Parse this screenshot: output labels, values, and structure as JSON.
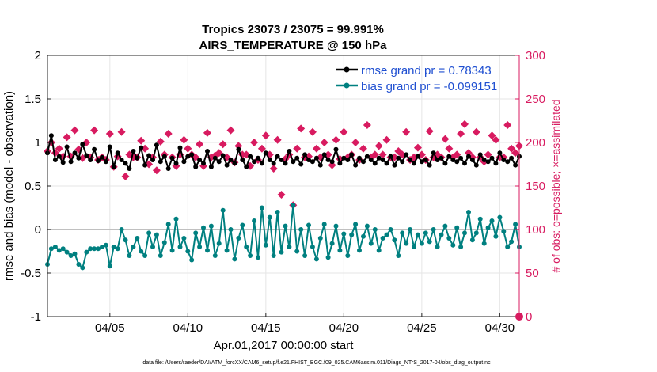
{
  "chart_data": {
    "type": "line",
    "title": "Tropics 23073 / 23075 = 99.991%",
    "subtitle": "AIRS_TEMPERATURE @ 150 hPa",
    "xlabel": "Apr.01,2017 00:00:00 start",
    "ylabel_left": "rmse and bias (model - observation)",
    "ylabel_right": "# of obs: o=possible; ×=assimilated",
    "footnote": "data file: /Users/raeder/DAI/ATM_forcXX/CAM6_setup/f.e21.FHIST_BGC.f09_025.CAM6assim.011/Diags_NTrS_2017-04/obs_diag_output.nc",
    "x_range_days": [
      1.0,
      31.25
    ],
    "ylim_left": [
      -1,
      2
    ],
    "ylim_right": [
      0,
      300
    ],
    "x_ticks": [
      {
        "day": 5,
        "label": "04/05"
      },
      {
        "day": 10,
        "label": "04/10"
      },
      {
        "day": 15,
        "label": "04/15"
      },
      {
        "day": 20,
        "label": "04/20"
      },
      {
        "day": 25,
        "label": "04/25"
      },
      {
        "day": 30,
        "label": "04/30"
      }
    ],
    "y_ticks_left": [
      {
        "value": -1,
        "label": "-1"
      },
      {
        "value": -0.5,
        "label": "-0.5"
      },
      {
        "value": 0,
        "label": "0"
      },
      {
        "value": 0.5,
        "label": "0.5"
      },
      {
        "value": 1,
        "label": "1"
      },
      {
        "value": 1.5,
        "label": "1.5"
      },
      {
        "value": 2,
        "label": "2"
      }
    ],
    "y_ticks_right": [
      {
        "value": 0,
        "label": "0"
      },
      {
        "value": 50,
        "label": "50"
      },
      {
        "value": 100,
        "label": "100"
      },
      {
        "value": 150,
        "label": "150"
      },
      {
        "value": 200,
        "label": "200"
      },
      {
        "value": 250,
        "label": "250"
      },
      {
        "value": 300,
        "label": "300"
      }
    ],
    "grid": true,
    "legend_position": "top-right",
    "series": [
      {
        "name": "rmse grand pr = 0.78343",
        "axis": "left",
        "color": "#000000",
        "marker": "circle",
        "start_day": 1.0,
        "step_days": 0.25,
        "values": [
          0.88,
          1.08,
          0.8,
          0.84,
          0.77,
          0.95,
          0.78,
          0.88,
          0.82,
          0.98,
          0.85,
          0.8,
          0.92,
          0.79,
          0.83,
          0.78,
          0.95,
          0.72,
          0.88,
          0.8,
          0.76,
          0.7,
          0.9,
          0.82,
          0.94,
          0.74,
          0.85,
          0.8,
          0.97,
          0.78,
          0.84,
          0.7,
          0.82,
          0.76,
          0.94,
          0.78,
          0.84,
          0.86,
          0.72,
          0.8,
          0.76,
          0.9,
          0.72,
          0.82,
          0.78,
          0.85,
          0.74,
          0.8,
          0.76,
          0.92,
          0.8,
          0.72,
          0.84,
          0.78,
          0.82,
          0.76,
          0.88,
          0.8,
          0.76,
          0.84,
          0.8,
          0.76,
          0.9,
          0.78,
          0.82,
          0.75,
          0.86,
          0.8,
          0.78,
          0.82,
          0.74,
          0.86,
          0.8,
          0.78,
          0.92,
          0.76,
          0.82,
          0.8,
          0.86,
          0.74,
          0.82,
          0.78,
          0.84,
          0.8,
          0.76,
          0.82,
          0.8,
          0.76,
          0.84,
          0.74,
          0.82,
          0.78,
          0.86,
          0.8,
          0.76,
          0.84,
          0.78,
          0.8,
          0.74,
          0.88,
          0.8,
          0.82,
          0.76,
          0.84,
          0.8,
          0.78,
          0.82,
          0.76,
          0.84,
          0.8,
          0.74,
          0.86,
          0.8,
          0.78,
          0.82,
          0.76,
          0.88,
          0.8,
          0.78,
          0.82,
          0.74,
          0.84
        ]
      },
      {
        "name": "bias grand pr = -0.099151",
        "axis": "left",
        "color": "#008080",
        "marker": "circle",
        "start_day": 1.0,
        "step_days": 0.25,
        "values": [
          -0.4,
          -0.22,
          -0.2,
          -0.24,
          -0.22,
          -0.26,
          -0.3,
          -0.28,
          -0.4,
          -0.44,
          -0.26,
          -0.22,
          -0.22,
          -0.22,
          -0.2,
          -0.18,
          -0.42,
          -0.2,
          -0.22,
          0.0,
          -0.12,
          -0.3,
          -0.2,
          -0.1,
          -0.25,
          -0.3,
          -0.04,
          -0.2,
          -0.06,
          -0.3,
          -0.15,
          0.06,
          -0.24,
          0.12,
          -0.2,
          -0.1,
          -0.25,
          -0.35,
          -0.04,
          -0.2,
          0.02,
          -0.24,
          0.04,
          -0.3,
          -0.16,
          0.22,
          -0.24,
          0.0,
          -0.34,
          -0.1,
          0.05,
          -0.2,
          -0.3,
          0.1,
          -0.32,
          0.25,
          -0.18,
          0.14,
          -0.3,
          0.2,
          -0.26,
          0.04,
          -0.2,
          0.28,
          -0.25,
          0.0,
          -0.3,
          0.05,
          -0.2,
          -0.34,
          -0.1,
          0.06,
          -0.32,
          -0.16,
          0.04,
          -0.24,
          -0.05,
          -0.3,
          -0.06,
          0.06,
          -0.24,
          -0.08,
          0.04,
          -0.16,
          0.0,
          -0.24,
          -0.1,
          -0.06,
          0.0,
          -0.12,
          -0.3,
          -0.04,
          -0.16,
          0.0,
          -0.2,
          -0.06,
          -0.16,
          -0.04,
          -0.14,
          0.0,
          -0.2,
          -0.06,
          0.04,
          -0.1,
          -0.18,
          0.02,
          -0.2,
          -0.04,
          0.2,
          -0.12,
          -0.04,
          0.12,
          -0.16,
          0.02,
          0.1,
          -0.08,
          0.14,
          -0.02,
          -0.2,
          -0.14,
          0.06,
          -0.2
        ]
      }
    ],
    "obs_possible": {
      "name": "possible",
      "axis": "right",
      "color": "#d81b60",
      "marker": "circle",
      "day": 31.25,
      "value": 0
    },
    "obs_assimilated": {
      "name": "assimilated",
      "axis": "right",
      "color": "#d81b60",
      "marker": "diamond",
      "start_day": 1.0,
      "step_days": 0.25,
      "values": [
        190,
        200,
        188,
        193,
        184,
        206,
        184,
        214,
        192,
        182,
        200,
        183,
        214,
        180,
        183,
        180,
        210,
        172,
        184,
        212,
        161,
        186,
        183,
        183,
        202,
        193,
        175,
        183,
        168,
        201,
        186,
        210,
        183,
        173,
        186,
        203,
        193,
        186,
        183,
        198,
        173,
        211,
        183,
        185,
        188,
        198,
        183,
        214,
        177,
        196,
        186,
        186,
        173,
        200,
        180,
        193,
        208,
        186,
        170,
        203,
        140,
        181,
        186,
        128,
        193,
        216,
        183,
        184,
        212,
        193,
        183,
        200,
        186,
        174,
        203,
        181,
        212,
        183,
        186,
        200,
        180,
        193,
        220,
        183,
        186,
        196,
        186,
        203,
        183,
        183,
        190,
        186,
        212,
        180,
        183,
        194,
        186,
        180,
        213,
        183,
        186,
        183,
        204,
        193,
        183,
        186,
        210,
        221,
        188,
        183,
        212,
        183,
        178,
        186,
        208,
        203,
        183,
        183,
        220,
        193,
        188,
        196
      ]
    }
  }
}
